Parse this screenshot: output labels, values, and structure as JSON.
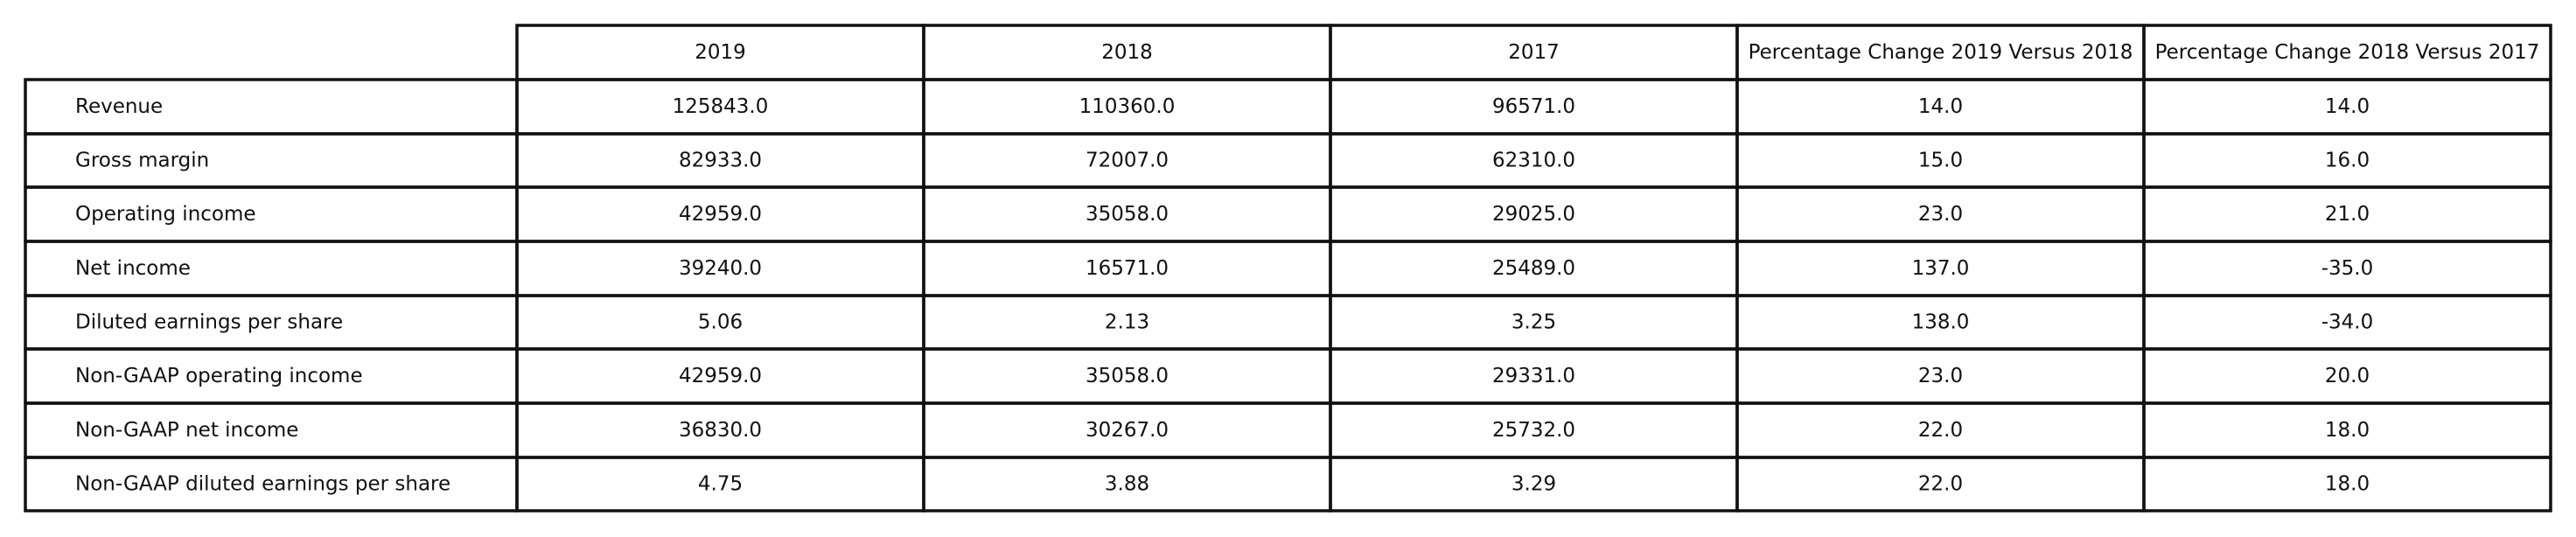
{
  "chart_data": {
    "type": "table",
    "columns": [
      "2019",
      "2018",
      "2017",
      "Percentage Change 2019 Versus 2018",
      "Percentage Change 2018 Versus 2017"
    ],
    "rows": [
      {
        "label": "Revenue",
        "values": [
          "125843.0",
          "110360.0",
          "96571.0",
          "14.0",
          "14.0"
        ]
      },
      {
        "label": "Gross margin",
        "values": [
          "82933.0",
          "72007.0",
          "62310.0",
          "15.0",
          "16.0"
        ]
      },
      {
        "label": "Operating income",
        "values": [
          "42959.0",
          "35058.0",
          "29025.0",
          "23.0",
          "21.0"
        ]
      },
      {
        "label": "Net income",
        "values": [
          "39240.0",
          "16571.0",
          "25489.0",
          "137.0",
          "-35.0"
        ]
      },
      {
        "label": "Diluted earnings per share",
        "values": [
          "5.06",
          "2.13",
          "3.25",
          "138.0",
          "-34.0"
        ]
      },
      {
        "label": "Non-GAAP operating income",
        "values": [
          "42959.0",
          "35058.0",
          "29331.0",
          "23.0",
          "20.0"
        ]
      },
      {
        "label": "Non-GAAP net income",
        "values": [
          "36830.0",
          "30267.0",
          "25732.0",
          "22.0",
          "18.0"
        ]
      },
      {
        "label": "Non-GAAP diluted earnings per share",
        "values": [
          "4.75",
          "3.88",
          "3.29",
          "22.0",
          "18.0"
        ]
      }
    ]
  }
}
